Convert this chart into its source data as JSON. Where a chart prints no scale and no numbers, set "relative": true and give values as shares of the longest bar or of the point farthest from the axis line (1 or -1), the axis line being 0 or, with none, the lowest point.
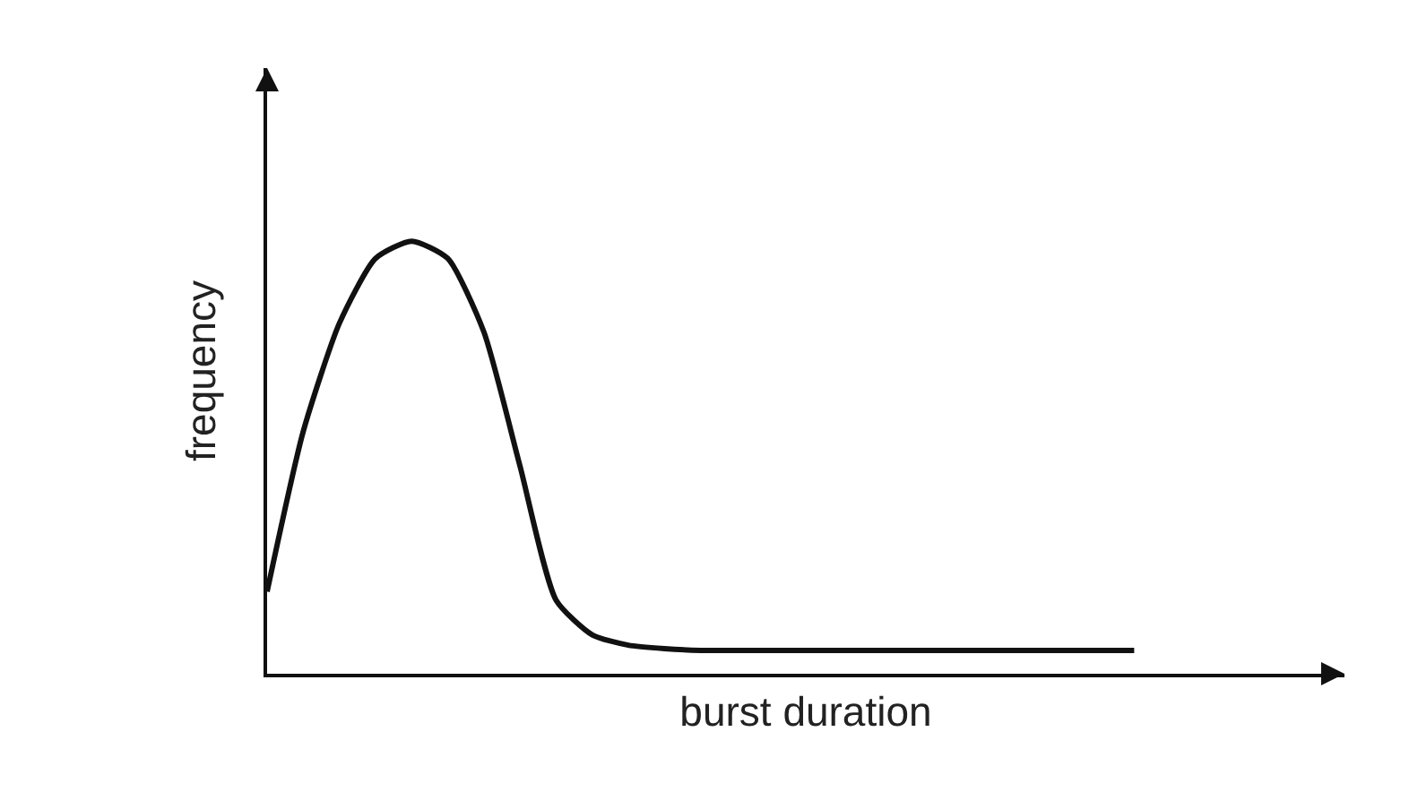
{
  "chart_data": {
    "type": "line",
    "relative": true,
    "xlabel": "burst duration",
    "ylabel": "frequency",
    "color": "#111111",
    "grid": false,
    "legend": false,
    "marker": "none",
    "line_style": "solid",
    "categories": [
      null,
      null,
      null,
      null,
      null,
      null,
      null,
      null,
      null,
      null,
      null,
      null,
      null,
      null,
      null,
      null,
      null,
      null,
      null,
      null,
      null,
      null,
      null,
      null,
      null
    ],
    "values": [
      0.19,
      0.56,
      0.81,
      0.96,
      1,
      0.96,
      0.79,
      0.48,
      0.17,
      0.09,
      0.066,
      0.058,
      0.054,
      0.054,
      0.054,
      0.054,
      0.054,
      0.054,
      0.054,
      0.054,
      0.054,
      0.054,
      0.054,
      0.054,
      0.054
    ]
  }
}
